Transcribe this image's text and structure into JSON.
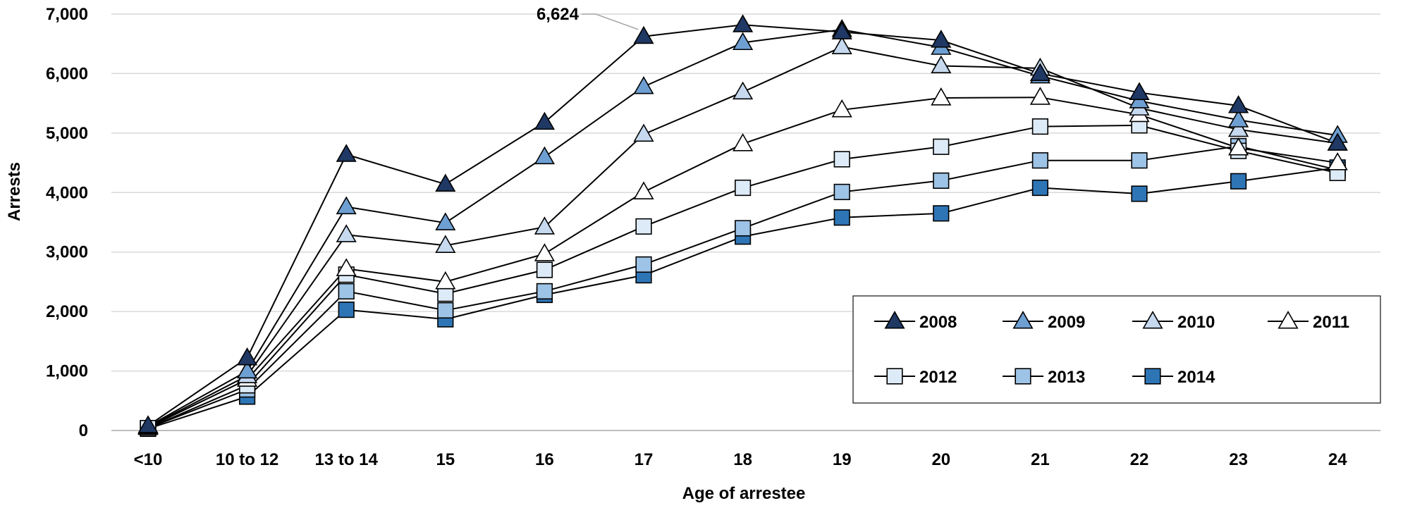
{
  "chart_data": {
    "type": "line",
    "title": "",
    "xlabel": "Age of arrestee",
    "ylabel": "Arrests",
    "ylim": [
      0,
      7000
    ],
    "yticks": [
      0,
      1000,
      2000,
      3000,
      4000,
      5000,
      6000,
      7000
    ],
    "ytick_labels": [
      "0",
      "1,000",
      "2,000",
      "3,000",
      "4,000",
      "5,000",
      "6,000",
      "7,000"
    ],
    "grid": "horizontal",
    "legend_position": "bottom-right",
    "categories": [
      "<10",
      "10 to 12",
      "13 to 14",
      "15",
      "16",
      "17",
      "18",
      "19",
      "20",
      "21",
      "22",
      "23",
      "24"
    ],
    "series": [
      {
        "name": "2008",
        "marker": "triangle",
        "color": "#1f3864",
        "values": [
          80,
          1220,
          4640,
          4140,
          5180,
          6624,
          6820,
          6700,
          6560,
          6000,
          5680,
          5460,
          4830
        ]
      },
      {
        "name": "2009",
        "marker": "triangle",
        "color": "#6e9fd2",
        "values": [
          70,
          1000,
          3760,
          3490,
          4600,
          5780,
          6520,
          6740,
          6440,
          5960,
          5540,
          5220,
          4960
        ]
      },
      {
        "name": "2010",
        "marker": "triangle",
        "color": "#c6d9ef",
        "values": [
          60,
          920,
          3290,
          3110,
          3420,
          4980,
          5690,
          6450,
          6130,
          6090,
          5420,
          5060,
          4830
        ]
      },
      {
        "name": "2011",
        "marker": "triangle",
        "color": "#ffffff",
        "values": [
          50,
          860,
          2720,
          2500,
          2970,
          4010,
          4820,
          5390,
          5590,
          5600,
          5310,
          4750,
          4500
        ]
      },
      {
        "name": "2012",
        "marker": "square",
        "color": "#ddeaf7",
        "values": [
          40,
          760,
          2620,
          2300,
          2700,
          3430,
          4080,
          4560,
          4770,
          5110,
          5130,
          4700,
          4330
        ]
      },
      {
        "name": "2013",
        "marker": "square",
        "color": "#9dc3e6",
        "values": [
          40,
          690,
          2340,
          2020,
          2340,
          2790,
          3400,
          4010,
          4200,
          4540,
          4540,
          4780,
          4380
        ]
      },
      {
        "name": "2014",
        "marker": "square",
        "color": "#2e75b6",
        "values": [
          30,
          570,
          2030,
          1870,
          2280,
          2610,
          3260,
          3580,
          3650,
          4080,
          3980,
          4190,
          4420
        ]
      }
    ],
    "annotations": [
      {
        "text": "6,624",
        "series": "2008",
        "category": "17"
      }
    ]
  }
}
